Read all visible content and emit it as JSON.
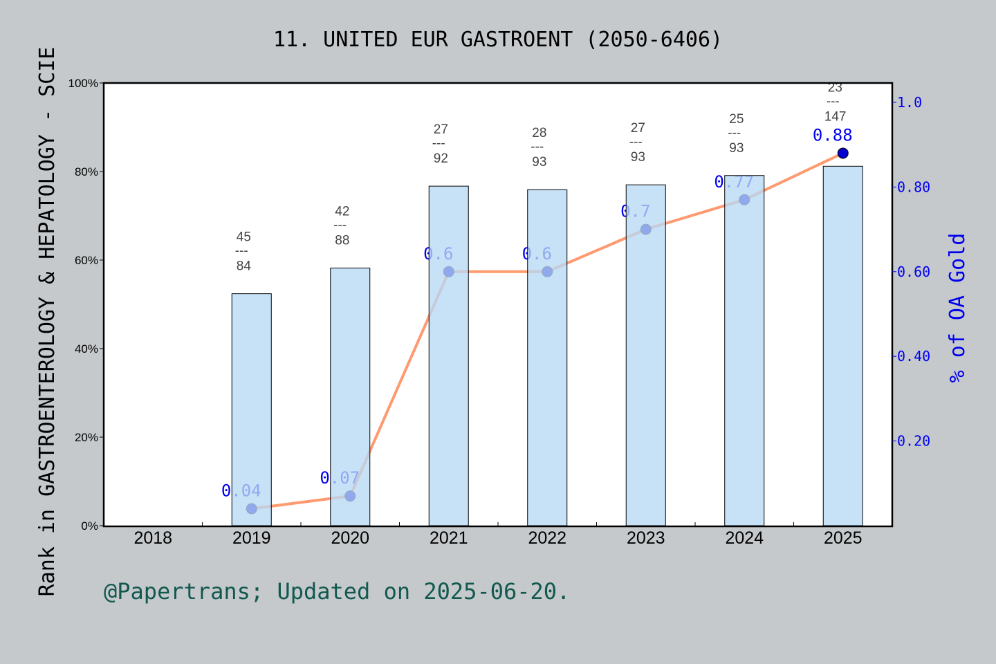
{
  "chart_data": {
    "type": "bar",
    "title": "11. UNITED EUR GASTROENT (2050-6406)",
    "ylabel": "Rank in GASTROENTEROLOGY & HEPATOLOGY - SCIE",
    "y2label": "% of OA Gold",
    "categories": [
      "2018",
      "2019",
      "2020",
      "2021",
      "2022",
      "2023",
      "2024",
      "2025"
    ],
    "ylim": [
      0,
      100
    ],
    "y_ticks": [
      "0%",
      "20%",
      "40%",
      "60%",
      "80%",
      "100%"
    ],
    "y2lim": [
      0,
      1.05
    ],
    "y2_ticks": [
      "0.20",
      "0.40",
      "0.60",
      "0.80",
      "1.0"
    ],
    "series": [
      {
        "type": "bar",
        "values": [
          null,
          52.4,
          58.2,
          76.7,
          75.9,
          77.0,
          79.1,
          81.2
        ],
        "color": "#c5e0f7",
        "rank_labels": [
          null,
          {
            "rank": "45",
            "total": "84"
          },
          {
            "rank": "42",
            "total": "88"
          },
          {
            "rank": "27",
            "total": "92"
          },
          {
            "rank": "28",
            "total": "93"
          },
          {
            "rank": "27",
            "total": "93"
          },
          {
            "rank": "25",
            "total": "93"
          },
          {
            "rank": "23",
            "total": "147"
          }
        ]
      },
      {
        "type": "line",
        "axis": "right",
        "values": [
          null,
          0.04,
          0.07,
          0.6,
          0.6,
          0.7,
          0.77,
          0.88
        ],
        "labels": [
          null,
          "0.04",
          "0.07",
          "0.6",
          "0.6",
          "0.7",
          "0.77",
          "0.88"
        ],
        "color": "#ff9a70",
        "marker_color": "#0000cc"
      }
    ],
    "grid": false,
    "divider": "---"
  },
  "footer": {
    "credit": "@Papertrans; Updated on 2025-06-20."
  }
}
